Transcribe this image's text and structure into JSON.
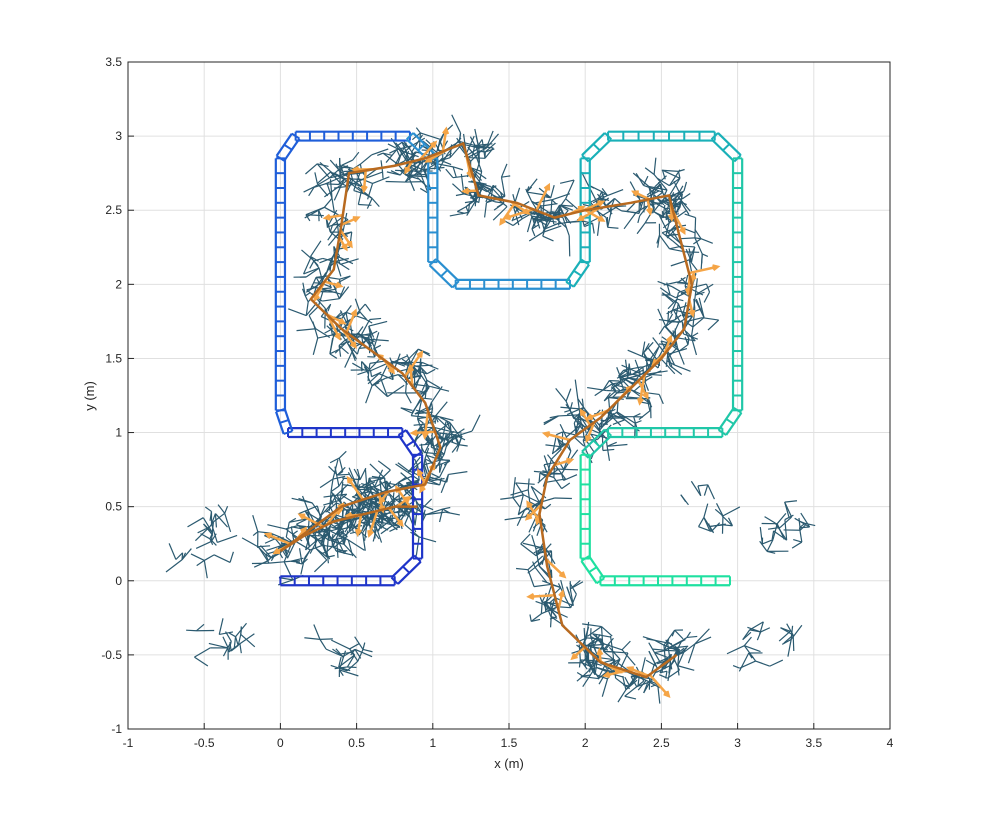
{
  "chart_data": {
    "type": "line",
    "title": "",
    "xlabel": "x (m)",
    "ylabel": "y (m)",
    "xlim": [
      -1,
      4
    ],
    "ylim": [
      -1,
      3.5
    ],
    "grid": true,
    "xticks": [
      -1,
      -0.5,
      0,
      0.5,
      1,
      1.5,
      2,
      2.5,
      3,
      3.5,
      4
    ],
    "yticks": [
      -1,
      -0.5,
      0,
      0.5,
      1,
      1.5,
      2,
      2.5,
      3,
      3.5
    ],
    "xtick_labels": [
      "-1",
      "-0.5",
      "0",
      "0.5",
      "1",
      "1.5",
      "2",
      "2.5",
      "3",
      "3.5",
      "4"
    ],
    "ytick_labels": [
      "-1",
      "-0.5",
      "0",
      "0.5",
      "1",
      "1.5",
      "2",
      "2.5",
      "3",
      "3.5"
    ],
    "colors": {
      "track_segments": [
        "#1f35c9",
        "#1f5ed9",
        "#2a8fd0",
        "#1ab0b8",
        "#20c7a8",
        "#1fe0a0"
      ],
      "tree": "#2b5a70",
      "path": "#b86a20",
      "arrows": "#f5a547",
      "grid": "#e0e0e0",
      "axes": "#262626"
    },
    "track_centerline": [
      [
        0,
        0
      ],
      [
        0.75,
        0
      ],
      [
        0.9,
        0.15
      ],
      [
        0.9,
        0.85
      ],
      [
        0.8,
        1.0
      ],
      [
        0.05,
        1.0
      ],
      [
        0,
        1.15
      ],
      [
        0,
        2.85
      ],
      [
        0.1,
        3.0
      ],
      [
        0.85,
        3.0
      ],
      [
        1.0,
        2.85
      ],
      [
        1.0,
        2.15
      ],
      [
        1.15,
        2.0
      ],
      [
        1.9,
        2.0
      ],
      [
        2.0,
        2.15
      ],
      [
        2.0,
        2.85
      ],
      [
        2.15,
        3.0
      ],
      [
        2.85,
        3.0
      ],
      [
        3.0,
        2.85
      ],
      [
        3.0,
        1.15
      ],
      [
        2.9,
        1.0
      ],
      [
        2.15,
        1.0
      ],
      [
        2.0,
        0.85
      ],
      [
        2.0,
        0.15
      ],
      [
        2.1,
        0
      ],
      [
        2.95,
        0
      ]
    ],
    "planned_path": [
      [
        0.9,
        0.5
      ],
      [
        0.75,
        0.5
      ],
      [
        0.55,
        0.45
      ],
      [
        0.35,
        0.4
      ],
      [
        0.15,
        0.3
      ],
      [
        0.0,
        0.2
      ],
      [
        0.4,
        0.5
      ],
      [
        0.7,
        0.6
      ],
      [
        0.95,
        0.65
      ],
      [
        1.05,
        0.9
      ],
      [
        0.95,
        1.2
      ],
      [
        0.8,
        1.4
      ],
      [
        0.6,
        1.55
      ],
      [
        0.4,
        1.7
      ],
      [
        0.2,
        1.9
      ],
      [
        0.35,
        2.1
      ],
      [
        0.4,
        2.4
      ],
      [
        0.45,
        2.75
      ],
      [
        0.75,
        2.8
      ],
      [
        0.95,
        2.85
      ],
      [
        1.2,
        2.95
      ],
      [
        1.3,
        2.6
      ],
      [
        1.55,
        2.55
      ],
      [
        1.8,
        2.45
      ],
      [
        2.0,
        2.5
      ],
      [
        2.3,
        2.55
      ],
      [
        2.55,
        2.6
      ],
      [
        2.6,
        2.4
      ],
      [
        2.7,
        2.0
      ],
      [
        2.65,
        1.7
      ],
      [
        2.5,
        1.5
      ],
      [
        2.3,
        1.3
      ],
      [
        2.1,
        1.1
      ],
      [
        1.9,
        0.95
      ],
      [
        1.75,
        0.7
      ],
      [
        1.7,
        0.45
      ],
      [
        1.75,
        0.1
      ],
      [
        1.85,
        -0.3
      ],
      [
        2.1,
        -0.55
      ],
      [
        2.4,
        -0.65
      ],
      [
        2.6,
        -0.5
      ]
    ]
  }
}
